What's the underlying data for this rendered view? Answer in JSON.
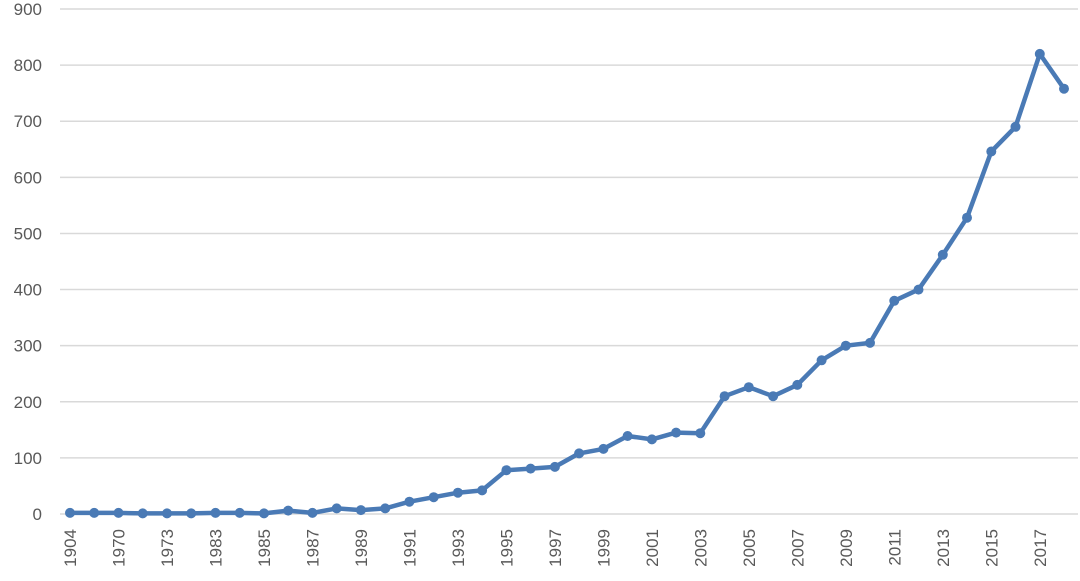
{
  "chart_data": {
    "type": "line",
    "title": "",
    "xlabel": "",
    "ylabel": "",
    "ylim": [
      0,
      900
    ],
    "yticks": [
      0,
      100,
      200,
      300,
      400,
      500,
      600,
      700,
      800,
      900
    ],
    "grid": true,
    "legend": "none",
    "x": [
      "1904",
      "1968",
      "1970",
      "1972",
      "1973",
      "1976",
      "1983",
      "1984",
      "1985",
      "1986",
      "1987",
      "1988",
      "1989",
      "1990",
      "1991",
      "1992",
      "1993",
      "1994",
      "1995",
      "1996",
      "1997",
      "1998",
      "1999",
      "2000",
      "2001",
      "2002",
      "2003",
      "2004",
      "2005",
      "2006",
      "2007",
      "2008",
      "2009",
      "2010",
      "2011",
      "2012",
      "2013",
      "2014",
      "2015",
      "2016",
      "2017",
      "2018"
    ],
    "x_labels": [
      "1904",
      "1970",
      "1973",
      "1983",
      "1985",
      "1987",
      "1989",
      "1991",
      "1993",
      "1995",
      "1997",
      "1999",
      "2001",
      "2003",
      "2005",
      "2007",
      "2009",
      "2011",
      "2013",
      "2015",
      "2017"
    ],
    "series": [
      {
        "color": "#4a7ab5",
        "values": [
          2,
          2,
          2,
          1,
          1,
          1,
          2,
          2,
          1,
          6,
          2,
          10,
          7,
          10,
          22,
          30,
          38,
          42,
          78,
          81,
          84,
          108,
          116,
          139,
          133,
          145,
          144,
          210,
          226,
          210,
          230,
          274,
          300,
          305,
          380,
          400,
          462,
          528,
          646,
          690,
          820,
          758
        ]
      }
    ]
  }
}
